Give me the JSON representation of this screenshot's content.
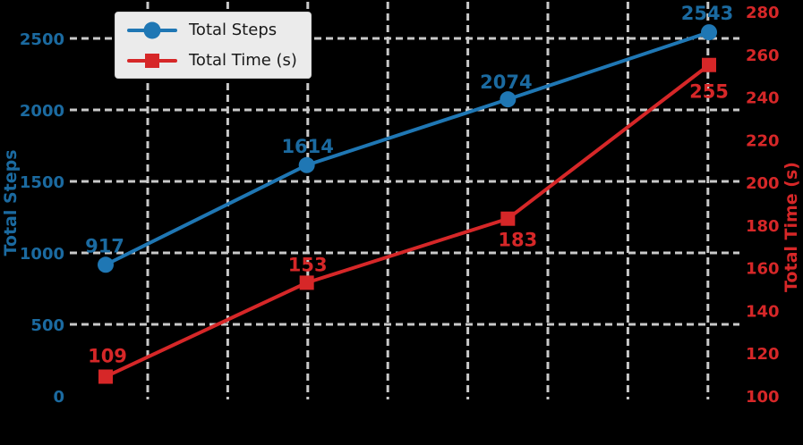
{
  "background_color": "#000000",
  "legend": {
    "items": [
      {
        "label": "Total Steps",
        "marker": "circle",
        "color": "#1f77b4"
      },
      {
        "label": "Total Time (s)",
        "marker": "square",
        "color": "#d62728"
      }
    ],
    "background": "#ebebeb",
    "border_color": "#d6d6d6",
    "text_color": "#1a1a1a"
  },
  "axes": {
    "left": {
      "label": "Total Steps",
      "line_color": "#1f77b4",
      "text_color": "#1b6aa0",
      "tick_values": [
        0,
        500,
        1000,
        1500,
        2000,
        2500
      ]
    },
    "right": {
      "label": "Total Time (s)",
      "line_color": "#d62728",
      "text_color": "#d62728",
      "tick_values": [
        100,
        120,
        140,
        160,
        180,
        200,
        220,
        240,
        260,
        280
      ]
    },
    "x": {
      "tick_labels_visible": false
    }
  },
  "grid": {
    "color": "#c9c9c9",
    "style": "dashed"
  },
  "chart_data": {
    "type": "line",
    "title": "",
    "x": [
      1,
      2,
      3,
      4
    ],
    "x_tick_labels": [],
    "series": [
      {
        "name": "Total Steps",
        "axis": "left",
        "color": "#1f77b4",
        "marker": "circle",
        "values": [
          917,
          1614,
          2074,
          2543
        ],
        "point_labels": [
          "917",
          "1614",
          "2074",
          "2543"
        ]
      },
      {
        "name": "Total Time (s)",
        "axis": "right",
        "color": "#d62728",
        "marker": "square",
        "values": [
          109,
          153,
          183,
          255
        ],
        "point_labels": [
          "109",
          "153",
          "183",
          "255"
        ]
      }
    ],
    "left_ylim": [
      0,
      2570
    ],
    "right_ylim": [
      100,
      281
    ],
    "grid_on": true,
    "legend_position": "upper left"
  }
}
